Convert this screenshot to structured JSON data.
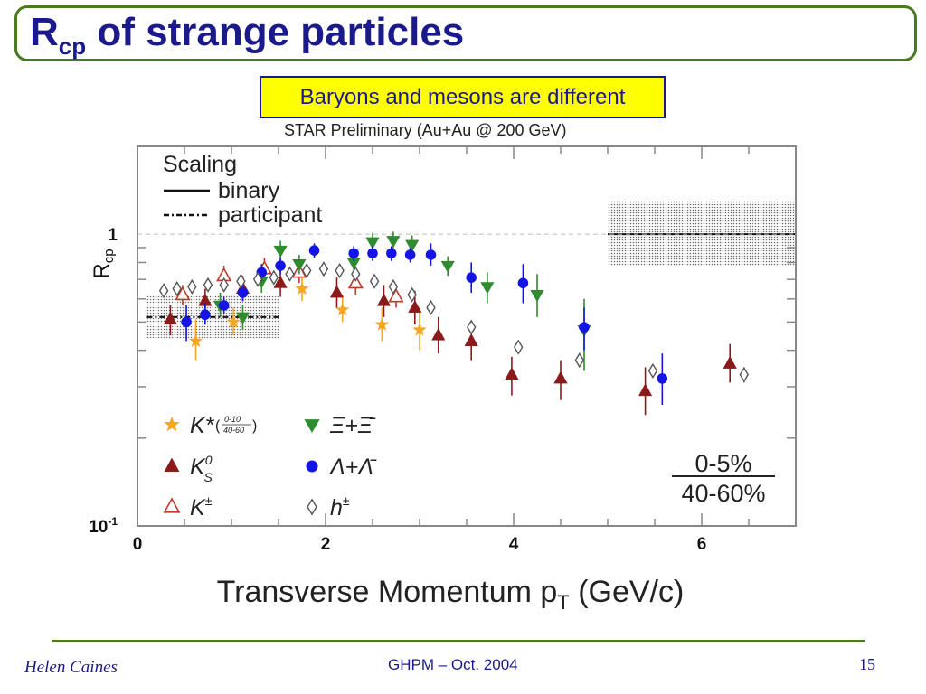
{
  "slide": {
    "title_main": "R",
    "title_sub": "cp",
    "title_rest": " of strange particles",
    "callout": "Baryons and mesons are different",
    "footer_author": "Helen Caines",
    "footer_conf": "GHPM – Oct. 2004",
    "page_number": "15"
  },
  "chart_data": {
    "type": "scatter",
    "title": "STAR Preliminary (Au+Au @ 200 GeV)",
    "xlabel": "Transverse Momentum p",
    "xlabel_sub": "T",
    "xlabel_unit": " (GeV/c)",
    "ylabel": "R",
    "ylabel_sub": "cp",
    "xlim": [
      0,
      7
    ],
    "ylim": [
      0.1,
      2.0
    ],
    "yscale": "log",
    "x_ticks": [
      "0",
      "2",
      "4",
      "6"
    ],
    "y_ticks": [
      {
        "value": 1,
        "label": "1"
      },
      {
        "value": 0.1,
        "label": "10",
        "exp": "-1"
      }
    ],
    "centrality_num": "0-5%",
    "centrality_den": "40-60%",
    "scaling_legend": {
      "header": "Scaling",
      "binary": "binary",
      "participant": "participant"
    },
    "bands": [
      {
        "kind": "binary",
        "x": [
          5.0,
          7.0
        ],
        "center": 1.0,
        "lo": 0.78,
        "hi": 1.3
      },
      {
        "kind": "participant",
        "x": [
          0.1,
          1.5
        ],
        "center": 0.52,
        "lo": 0.44,
        "hi": 0.62
      }
    ],
    "series": [
      {
        "name": "K*",
        "ratio_num": "0-10",
        "ratio_den": "40-60",
        "marker": "star",
        "color": "#f5a623",
        "points": [
          {
            "x": 0.62,
            "y": 0.43,
            "lo": 0.37,
            "hi": 0.51
          },
          {
            "x": 1.02,
            "y": 0.5,
            "lo": 0.45,
            "hi": 0.56
          },
          {
            "x": 1.75,
            "y": 0.65,
            "lo": 0.59,
            "hi": 0.72
          },
          {
            "x": 2.18,
            "y": 0.55,
            "lo": 0.5,
            "hi": 0.62
          },
          {
            "x": 2.6,
            "y": 0.49,
            "lo": 0.43,
            "hi": 0.56
          },
          {
            "x": 3.0,
            "y": 0.47,
            "lo": 0.4,
            "hi": 0.56
          }
        ]
      },
      {
        "name": "K",
        "sub": "S",
        "sup": "0",
        "marker": "tri-up",
        "color": "#8b1a1a",
        "points": [
          {
            "x": 0.35,
            "y": 0.51,
            "lo": 0.45,
            "hi": 0.57
          },
          {
            "x": 0.72,
            "y": 0.59,
            "lo": 0.53,
            "hi": 0.65
          },
          {
            "x": 1.12,
            "y": 0.65,
            "lo": 0.59,
            "hi": 0.72
          },
          {
            "x": 1.52,
            "y": 0.68,
            "lo": 0.61,
            "hi": 0.76
          },
          {
            "x": 2.12,
            "y": 0.63,
            "lo": 0.56,
            "hi": 0.71
          },
          {
            "x": 2.62,
            "y": 0.59,
            "lo": 0.52,
            "hi": 0.67
          },
          {
            "x": 2.95,
            "y": 0.56,
            "lo": 0.49,
            "hi": 0.64
          },
          {
            "x": 3.2,
            "y": 0.45,
            "lo": 0.39,
            "hi": 0.52
          },
          {
            "x": 3.55,
            "y": 0.43,
            "lo": 0.37,
            "hi": 0.49
          },
          {
            "x": 3.98,
            "y": 0.33,
            "lo": 0.28,
            "hi": 0.38
          },
          {
            "x": 4.5,
            "y": 0.32,
            "lo": 0.27,
            "hi": 0.37
          },
          {
            "x": 5.4,
            "y": 0.29,
            "lo": 0.24,
            "hi": 0.35
          },
          {
            "x": 6.3,
            "y": 0.36,
            "lo": 0.31,
            "hi": 0.42
          }
        ]
      },
      {
        "name": "K",
        "sup": "±",
        "marker": "tri-up-open",
        "color": "#c0392b",
        "points": [
          {
            "x": 0.48,
            "y": 0.62,
            "lo": 0.57,
            "hi": 0.67
          },
          {
            "x": 0.92,
            "y": 0.72,
            "lo": 0.66,
            "hi": 0.78
          },
          {
            "x": 1.35,
            "y": 0.76,
            "lo": 0.69,
            "hi": 0.83
          },
          {
            "x": 1.72,
            "y": 0.74,
            "lo": 0.68,
            "hi": 0.8
          },
          {
            "x": 2.32,
            "y": 0.68,
            "lo": 0.62,
            "hi": 0.74
          },
          {
            "x": 2.75,
            "y": 0.61,
            "lo": 0.56,
            "hi": 0.66
          }
        ]
      },
      {
        "name": "Ξ+Ξ̄",
        "marker": "tri-down",
        "color": "#2e8b2e",
        "points": [
          {
            "x": 0.88,
            "y": 0.57,
            "lo": 0.52,
            "hi": 0.63
          },
          {
            "x": 1.12,
            "y": 0.52,
            "lo": 0.47,
            "hi": 0.57
          },
          {
            "x": 1.32,
            "y": 0.69,
            "lo": 0.63,
            "hi": 0.75
          },
          {
            "x": 1.52,
            "y": 0.88,
            "lo": 0.82,
            "hi": 0.95
          },
          {
            "x": 1.72,
            "y": 0.79,
            "lo": 0.73,
            "hi": 0.85
          },
          {
            "x": 2.3,
            "y": 0.8,
            "lo": 0.74,
            "hi": 0.86
          },
          {
            "x": 2.5,
            "y": 0.94,
            "lo": 0.87,
            "hi": 1.01
          },
          {
            "x": 2.72,
            "y": 0.95,
            "lo": 0.88,
            "hi": 1.02
          },
          {
            "x": 2.92,
            "y": 0.92,
            "lo": 0.85,
            "hi": 0.99
          },
          {
            "x": 3.3,
            "y": 0.78,
            "lo": 0.72,
            "hi": 0.84
          },
          {
            "x": 3.72,
            "y": 0.66,
            "lo": 0.58,
            "hi": 0.74
          },
          {
            "x": 4.25,
            "y": 0.62,
            "lo": 0.52,
            "hi": 0.73
          },
          {
            "x": 4.75,
            "y": 0.47,
            "lo": 0.34,
            "hi": 0.6
          }
        ]
      },
      {
        "name": "Λ+Λ̄",
        "marker": "circle",
        "color": "#1414e6",
        "points": [
          {
            "x": 0.52,
            "y": 0.5,
            "lo": 0.43,
            "hi": 0.57
          },
          {
            "x": 0.72,
            "y": 0.53,
            "lo": 0.49,
            "hi": 0.58
          },
          {
            "x": 0.92,
            "y": 0.57,
            "lo": 0.53,
            "hi": 0.61
          },
          {
            "x": 1.12,
            "y": 0.63,
            "lo": 0.59,
            "hi": 0.68
          },
          {
            "x": 1.32,
            "y": 0.74,
            "lo": 0.69,
            "hi": 0.79
          },
          {
            "x": 1.52,
            "y": 0.78,
            "lo": 0.73,
            "hi": 0.83
          },
          {
            "x": 1.88,
            "y": 0.88,
            "lo": 0.83,
            "hi": 0.93
          },
          {
            "x": 2.3,
            "y": 0.86,
            "lo": 0.81,
            "hi": 0.91
          },
          {
            "x": 2.5,
            "y": 0.86,
            "lo": 0.81,
            "hi": 0.91
          },
          {
            "x": 2.7,
            "y": 0.86,
            "lo": 0.81,
            "hi": 0.91
          },
          {
            "x": 2.9,
            "y": 0.85,
            "lo": 0.8,
            "hi": 0.9
          },
          {
            "x": 3.12,
            "y": 0.85,
            "lo": 0.78,
            "hi": 0.93
          },
          {
            "x": 3.55,
            "y": 0.71,
            "lo": 0.63,
            "hi": 0.8
          },
          {
            "x": 4.1,
            "y": 0.68,
            "lo": 0.58,
            "hi": 0.79
          },
          {
            "x": 4.75,
            "y": 0.48,
            "lo": 0.4,
            "hi": 0.56
          },
          {
            "x": 5.58,
            "y": 0.32,
            "lo": 0.26,
            "hi": 0.39
          }
        ]
      },
      {
        "name": "h",
        "sup": "±",
        "marker": "diamond-open",
        "color": "#555555",
        "points": [
          {
            "x": 0.28,
            "y": 0.64,
            "lo": 0.64,
            "hi": 0.64
          },
          {
            "x": 0.42,
            "y": 0.65,
            "lo": 0.65,
            "hi": 0.65
          },
          {
            "x": 0.58,
            "y": 0.66,
            "lo": 0.66,
            "hi": 0.66
          },
          {
            "x": 0.75,
            "y": 0.67,
            "lo": 0.67,
            "hi": 0.67
          },
          {
            "x": 0.92,
            "y": 0.67,
            "lo": 0.67,
            "hi": 0.67
          },
          {
            "x": 1.1,
            "y": 0.69,
            "lo": 0.69,
            "hi": 0.69
          },
          {
            "x": 1.28,
            "y": 0.7,
            "lo": 0.7,
            "hi": 0.7
          },
          {
            "x": 1.45,
            "y": 0.71,
            "lo": 0.71,
            "hi": 0.71
          },
          {
            "x": 1.62,
            "y": 0.73,
            "lo": 0.73,
            "hi": 0.73
          },
          {
            "x": 1.8,
            "y": 0.75,
            "lo": 0.75,
            "hi": 0.75
          },
          {
            "x": 1.98,
            "y": 0.76,
            "lo": 0.76,
            "hi": 0.76
          },
          {
            "x": 2.15,
            "y": 0.75,
            "lo": 0.75,
            "hi": 0.75
          },
          {
            "x": 2.32,
            "y": 0.73,
            "lo": 0.73,
            "hi": 0.73
          },
          {
            "x": 2.52,
            "y": 0.69,
            "lo": 0.69,
            "hi": 0.69
          },
          {
            "x": 2.72,
            "y": 0.66,
            "lo": 0.66,
            "hi": 0.66
          },
          {
            "x": 2.92,
            "y": 0.62,
            "lo": 0.62,
            "hi": 0.62
          },
          {
            "x": 3.12,
            "y": 0.56,
            "lo": 0.56,
            "hi": 0.56
          },
          {
            "x": 3.55,
            "y": 0.48,
            "lo": 0.48,
            "hi": 0.48
          },
          {
            "x": 4.05,
            "y": 0.41,
            "lo": 0.41,
            "hi": 0.41
          },
          {
            "x": 4.7,
            "y": 0.37,
            "lo": 0.37,
            "hi": 0.37
          },
          {
            "x": 5.48,
            "y": 0.34,
            "lo": 0.34,
            "hi": 0.34
          },
          {
            "x": 6.45,
            "y": 0.33,
            "lo": 0.31,
            "hi": 0.35
          }
        ]
      }
    ]
  }
}
